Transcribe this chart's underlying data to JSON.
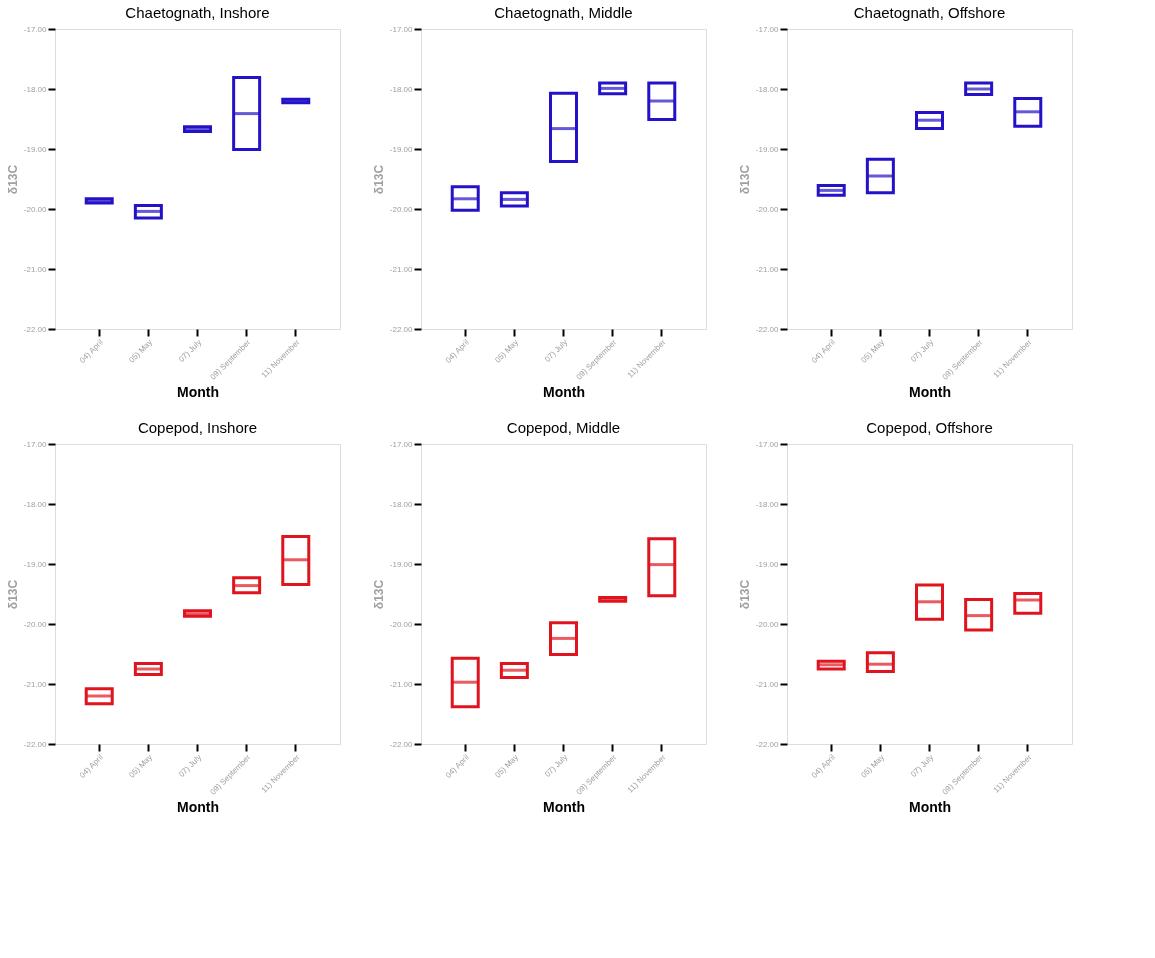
{
  "chart_data": [
    {
      "type": "box",
      "title": "Chaetognath, Inshore",
      "xlabel": "Month",
      "ylabel": "δ13C",
      "categories": [
        "04) April",
        "05) May",
        "07) July",
        "09) September",
        "11) November"
      ],
      "ylim": [
        -22,
        -17
      ],
      "yticks": [
        {
          "value": -22,
          "label": "-22.00"
        },
        {
          "value": -21,
          "label": "-21.00"
        },
        {
          "value": -20,
          "label": "-20.00"
        },
        {
          "value": -19,
          "label": "-19.00"
        },
        {
          "value": -18,
          "label": "-18.00"
        },
        {
          "value": -17,
          "label": "-17.00"
        }
      ],
      "grid": false,
      "series": [
        {
          "color": "#2412c8",
          "boxes": [
            {
              "low": -19.9,
              "q1": -19.9,
              "median": -19.86,
              "q3": -19.83,
              "high": -19.83
            },
            {
              "low": -20.15,
              "q1": -20.15,
              "median": -20.04,
              "q3": -19.94,
              "high": -19.94
            },
            {
              "low": -18.71,
              "q1": -18.71,
              "median": -18.67,
              "q3": -18.63,
              "high": -18.63
            },
            {
              "low": -19.01,
              "q1": -19.01,
              "median": -18.41,
              "q3": -17.81,
              "high": -17.81
            },
            {
              "low": -18.23,
              "q1": -18.23,
              "median": -18.2,
              "q3": -18.17,
              "high": -18.17
            }
          ]
        }
      ]
    },
    {
      "type": "box",
      "title": "Chaetognath, Middle",
      "xlabel": "Month",
      "ylabel": "δ13C",
      "categories": [
        "04) April",
        "05) May",
        "07) July",
        "09) September",
        "11) November"
      ],
      "ylim": [
        -22,
        -17
      ],
      "yticks": [
        {
          "value": -22,
          "label": "-22.00"
        },
        {
          "value": -21,
          "label": "-21.00"
        },
        {
          "value": -20,
          "label": "-20.00"
        },
        {
          "value": -19,
          "label": "-19.00"
        },
        {
          "value": -18,
          "label": "-18.00"
        },
        {
          "value": -17,
          "label": "-17.00"
        }
      ],
      "grid": false,
      "series": [
        {
          "color": "#2412c8",
          "boxes": [
            {
              "low": -20.02,
              "q1": -20.02,
              "median": -19.83,
              "q3": -19.63,
              "high": -19.63
            },
            {
              "low": -19.95,
              "q1": -19.95,
              "median": -19.84,
              "q3": -19.73,
              "high": -19.73
            },
            {
              "low": -19.21,
              "q1": -19.21,
              "median": -18.66,
              "q3": -18.07,
              "high": -18.07
            },
            {
              "low": -18.08,
              "q1": -18.08,
              "median": -17.99,
              "q3": -17.9,
              "high": -17.9
            },
            {
              "low": -18.51,
              "q1": -18.51,
              "median": -18.2,
              "q3": -17.9,
              "high": -17.9
            }
          ]
        }
      ]
    },
    {
      "type": "box",
      "title": "Chaetognath, Offshore",
      "xlabel": "Month",
      "ylabel": "δ13C",
      "categories": [
        "04) April",
        "05) May",
        "07) July",
        "09) September",
        "11) November"
      ],
      "ylim": [
        -22,
        -17
      ],
      "yticks": [
        {
          "value": -22,
          "label": "-22.00"
        },
        {
          "value": -21,
          "label": "-21.00"
        },
        {
          "value": -20,
          "label": "-20.00"
        },
        {
          "value": -19,
          "label": "-19.00"
        },
        {
          "value": -18,
          "label": "-18.00"
        },
        {
          "value": -17,
          "label": "-17.00"
        }
      ],
      "grid": false,
      "series": [
        {
          "color": "#2412c8",
          "boxes": [
            {
              "low": -19.77,
              "q1": -19.77,
              "median": -19.69,
              "q3": -19.61,
              "high": -19.61
            },
            {
              "low": -19.73,
              "q1": -19.73,
              "median": -19.45,
              "q3": -19.17,
              "high": -19.17
            },
            {
              "low": -18.66,
              "q1": -18.66,
              "median": -18.52,
              "q3": -18.39,
              "high": -18.39
            },
            {
              "low": -18.09,
              "q1": -18.09,
              "median": -18.0,
              "q3": -17.9,
              "high": -17.9
            },
            {
              "low": -18.62,
              "q1": -18.62,
              "median": -18.38,
              "q3": -18.16,
              "high": -18.16
            }
          ]
        }
      ]
    },
    {
      "type": "box",
      "title": "Copepod, Inshore",
      "xlabel": "Month",
      "ylabel": "δ13C",
      "categories": [
        "04) April",
        "05) May",
        "07) July",
        "09) September",
        "11) November"
      ],
      "ylim": [
        -22,
        -17
      ],
      "yticks": [
        {
          "value": -22,
          "label": "-22.00"
        },
        {
          "value": -21,
          "label": "-21.00"
        },
        {
          "value": -20,
          "label": "-20.00"
        },
        {
          "value": -19,
          "label": "-19.00"
        },
        {
          "value": -18,
          "label": "-18.00"
        },
        {
          "value": -17,
          "label": "-17.00"
        }
      ],
      "grid": false,
      "series": [
        {
          "color": "#e0141e",
          "boxes": [
            {
              "low": -21.33,
              "q1": -21.33,
              "median": -21.2,
              "q3": -21.08,
              "high": -21.08
            },
            {
              "low": -20.84,
              "q1": -20.84,
              "median": -20.75,
              "q3": -20.66,
              "high": -20.66
            },
            {
              "low": -19.87,
              "q1": -19.87,
              "median": -19.83,
              "q3": -19.78,
              "high": -19.78
            },
            {
              "low": -19.48,
              "q1": -19.48,
              "median": -19.36,
              "q3": -19.23,
              "high": -19.23
            },
            {
              "low": -19.34,
              "q1": -19.34,
              "median": -18.93,
              "q3": -18.54,
              "high": -18.54
            }
          ]
        }
      ]
    },
    {
      "type": "box",
      "title": "Copepod, Middle",
      "xlabel": "Month",
      "ylabel": "δ13C",
      "categories": [
        "04) April",
        "05) May",
        "07) July",
        "09) September",
        "11) November"
      ],
      "ylim": [
        -22,
        -17
      ],
      "yticks": [
        {
          "value": -22,
          "label": "-22.00"
        },
        {
          "value": -21,
          "label": "-21.00"
        },
        {
          "value": -20,
          "label": "-20.00"
        },
        {
          "value": -19,
          "label": "-19.00"
        },
        {
          "value": -18,
          "label": "-18.00"
        },
        {
          "value": -17,
          "label": "-17.00"
        }
      ],
      "grid": false,
      "series": [
        {
          "color": "#e0141e",
          "boxes": [
            {
              "low": -21.38,
              "q1": -21.38,
              "median": -20.97,
              "q3": -20.57,
              "high": -20.57
            },
            {
              "low": -20.89,
              "q1": -20.89,
              "median": -20.77,
              "q3": -20.66,
              "high": -20.66
            },
            {
              "low": -20.51,
              "q1": -20.51,
              "median": -20.24,
              "q3": -19.98,
              "high": -19.98
            },
            {
              "low": -19.62,
              "q1": -19.62,
              "median": -19.59,
              "q3": -19.56,
              "high": -19.56
            },
            {
              "low": -19.53,
              "q1": -19.53,
              "median": -19.01,
              "q3": -18.58,
              "high": -18.58
            }
          ]
        }
      ]
    },
    {
      "type": "box",
      "title": "Copepod, Offshore",
      "xlabel": "Month",
      "ylabel": "δ13C",
      "categories": [
        "04) April",
        "05) May",
        "07) July",
        "09) September",
        "11) November"
      ],
      "ylim": [
        -22,
        -17
      ],
      "yticks": [
        {
          "value": -22,
          "label": "-22.00"
        },
        {
          "value": -21,
          "label": "-21.00"
        },
        {
          "value": -20,
          "label": "-20.00"
        },
        {
          "value": -19,
          "label": "-19.00"
        },
        {
          "value": -18,
          "label": "-18.00"
        },
        {
          "value": -17,
          "label": "-17.00"
        }
      ],
      "grid": false,
      "series": [
        {
          "color": "#e0141e",
          "boxes": [
            {
              "low": -20.75,
              "q1": -20.75,
              "median": -20.68,
              "q3": -20.62,
              "high": -20.62
            },
            {
              "low": -20.79,
              "q1": -20.79,
              "median": -20.67,
              "q3": -20.48,
              "high": -20.48
            },
            {
              "low": -19.92,
              "q1": -19.92,
              "median": -19.63,
              "q3": -19.35,
              "high": -19.35
            },
            {
              "low": -20.1,
              "q1": -20.1,
              "median": -19.86,
              "q3": -19.59,
              "high": -19.59
            },
            {
              "low": -19.82,
              "q1": -19.82,
              "median": -19.6,
              "q3": -19.49,
              "high": -19.49
            }
          ]
        }
      ]
    }
  ]
}
